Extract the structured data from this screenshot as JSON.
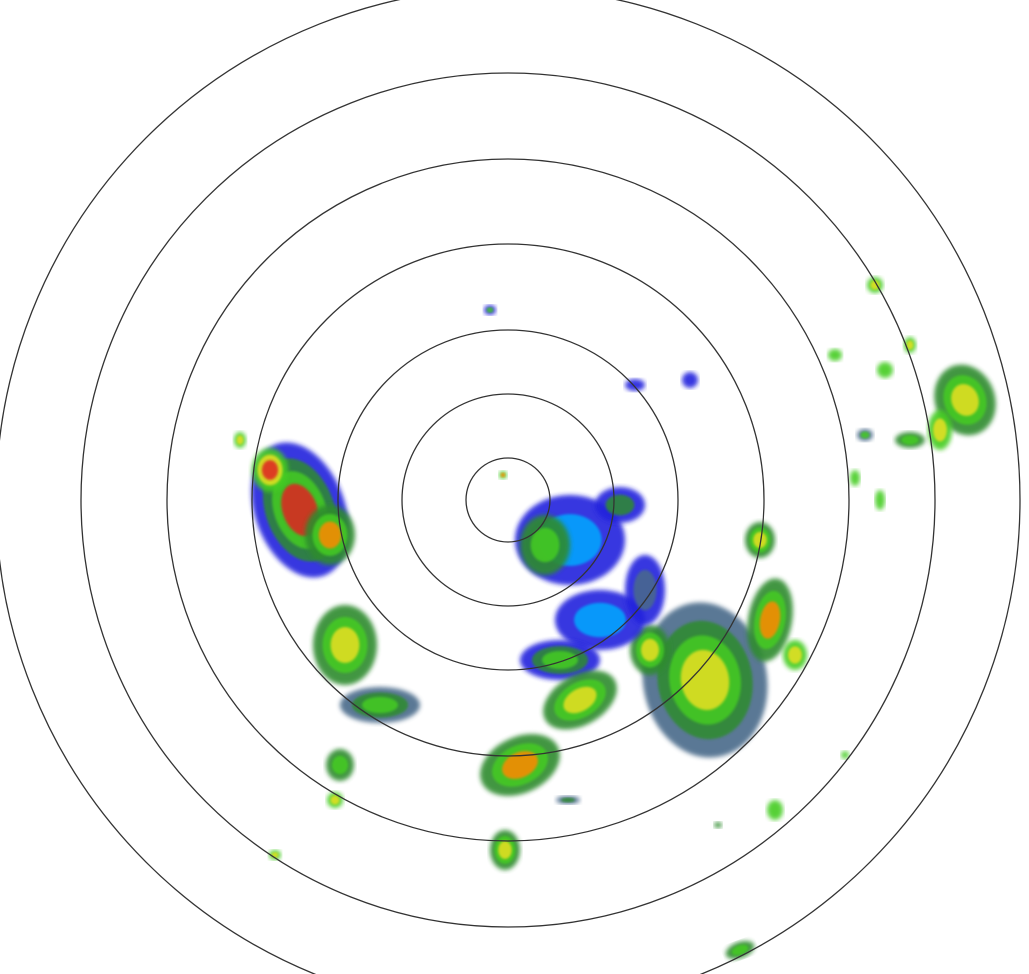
{
  "radar": {
    "ring_color": "#333333",
    "background": "#ffffff",
    "palette": {
      "weak": "#2222dd",
      "light": "#00aaff",
      "muted": "#4a6a8a",
      "moderate_dark": "#2e8b2e",
      "moderate": "#44cc22",
      "heavy": "#e8e020",
      "intense": "#ff8800",
      "extreme": "#e02020"
    }
  }
}
